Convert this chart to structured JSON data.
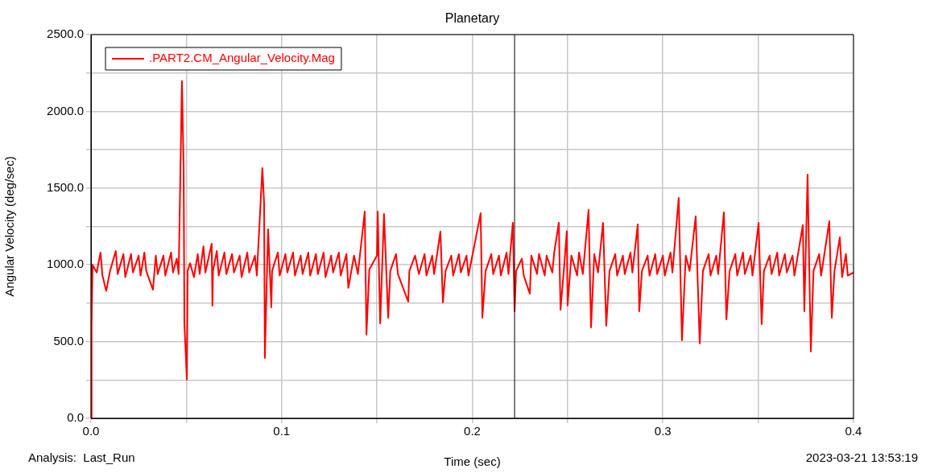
{
  "chart_data": {
    "type": "line",
    "title": "Planetary",
    "xlabel": "Time (sec)",
    "ylabel": "Angular Velocity (deg/sec)",
    "annotations": [
      "Analysis:  Last_Run",
      "2023-03-21 13:53:19"
    ],
    "xlim": [
      0,
      0.4
    ],
    "xticks": [
      {
        "value": 0,
        "label": "0.0"
      },
      {
        "value": 0.05,
        "label": null
      },
      {
        "value": 0.1,
        "label": "0.1"
      },
      {
        "value": 0.15,
        "label": null
      },
      {
        "value": 0.2,
        "label": "0.2"
      },
      {
        "value": 0.25,
        "label": null
      },
      {
        "value": 0.3,
        "label": "0.3"
      },
      {
        "value": 0.35,
        "label": null
      },
      {
        "value": 0.4,
        "label": "0.4"
      }
    ],
    "ylim": [
      0,
      2500
    ],
    "yticks": [
      {
        "value": 0,
        "label": "0.0"
      },
      {
        "value": 250,
        "label": null
      },
      {
        "value": 500,
        "label": "500.0"
      },
      {
        "value": 750,
        "label": null
      },
      {
        "value": 1000,
        "label": "1000.0"
      },
      {
        "value": 1250,
        "label": null
      },
      {
        "value": 1500,
        "label": "1500.0"
      },
      {
        "value": 1750,
        "label": null
      },
      {
        "value": 2000,
        "label": "2000.0"
      },
      {
        "value": 2250,
        "label": null
      },
      {
        "value": 2500,
        "label": "2500.0"
      }
    ],
    "grid": true,
    "legend": "top left",
    "line_style": "solid",
    "ref_lines": [
      {
        "axis": "x",
        "value": 0.2222,
        "color": "#000000"
      }
    ],
    "series": [
      {
        "name": ".PART2.CM_Angular_Velocity.Mag",
        "color": "#ff0000",
        "x": [
          0,
          0.0003,
          0.0008,
          0.003,
          0.005,
          0.006,
          0.008,
          0.01,
          0.013,
          0.014,
          0.017,
          0.018,
          0.021,
          0.022,
          0.025,
          0.026,
          0.028,
          0.029,
          0.0325,
          0.034,
          0.035,
          0.038,
          0.039,
          0.042,
          0.043,
          0.045,
          0.046,
          0.0477,
          0.0486,
          0.049,
          0.0503,
          0.0507,
          0.052,
          0.054,
          0.056,
          0.057,
          0.059,
          0.06,
          0.0633,
          0.0637,
          0.064,
          0.066,
          0.067,
          0.07,
          0.071,
          0.074,
          0.075,
          0.078,
          0.079,
          0.082,
          0.083,
          0.086,
          0.087,
          0.0899,
          0.0908,
          0.0912,
          0.0929,
          0.0946,
          0.095,
          0.098,
          0.099,
          0.102,
          0.103,
          0.106,
          0.107,
          0.11,
          0.111,
          0.114,
          0.115,
          0.118,
          0.119,
          0.122,
          0.123,
          0.126,
          0.127,
          0.13,
          0.131,
          0.134,
          0.135,
          0.138,
          0.14,
          0.1436,
          0.1445,
          0.146,
          0.15,
          0.1504,
          0.1517,
          0.1537,
          0.1559,
          0.157,
          0.16,
          0.161,
          0.1664,
          0.167,
          0.17,
          0.172,
          0.175,
          0.176,
          0.179,
          0.18,
          0.1833,
          0.1846,
          0.186,
          0.189,
          0.19,
          0.193,
          0.194,
          0.197,
          0.198,
          0.2044,
          0.2053,
          0.207,
          0.21,
          0.211,
          0.214,
          0.215,
          0.218,
          0.219,
          0.2213,
          0.2222,
          0.223,
          0.226,
          0.227,
          0.2302,
          0.231,
          0.234,
          0.235,
          0.238,
          0.239,
          0.242,
          0.243,
          0.2454,
          0.2463,
          0.248,
          0.2496,
          0.25,
          0.252,
          0.255,
          0.256,
          0.258,
          0.261,
          0.2623,
          0.264,
          0.266,
          0.2686,
          0.2703,
          0.272,
          0.275,
          0.276,
          0.279,
          0.28,
          0.283,
          0.284,
          0.2868,
          0.2876,
          0.289,
          0.292,
          0.293,
          0.296,
          0.297,
          0.3,
          0.301,
          0.304,
          0.305,
          0.3083,
          0.31,
          0.312,
          0.314,
          0.3172,
          0.3193,
          0.321,
          0.324,
          0.325,
          0.328,
          0.329,
          0.332,
          0.3333,
          0.335,
          0.338,
          0.339,
          0.342,
          0.343,
          0.346,
          0.347,
          0.3502,
          0.3518,
          0.353,
          0.356,
          0.357,
          0.36,
          0.361,
          0.364,
          0.365,
          0.368,
          0.369,
          0.3734,
          0.3742,
          0.3759,
          0.3776,
          0.379,
          0.382,
          0.383,
          0.3873,
          0.3886,
          0.39,
          0.3928,
          0.394,
          0.396,
          0.397,
          0.4
        ],
        "values": [
          0,
          600,
          1000,
          950,
          1080,
          930,
          830,
          960,
          1090,
          940,
          1070,
          920,
          1070,
          950,
          1060,
          930,
          1080,
          960,
          838,
          1060,
          940,
          1060,
          930,
          1080,
          950,
          1040,
          940,
          2196,
          1625,
          618,
          252,
          960,
          1010,
          920,
          1070,
          940,
          1120,
          950,
          1137,
          734,
          960,
          1090,
          930,
          1080,
          940,
          1070,
          950,
          1060,
          920,
          1080,
          950,
          1060,
          930,
          1630,
          1404,
          393,
          1231,
          723,
          960,
          1080,
          930,
          1070,
          950,
          1080,
          930,
          1060,
          940,
          1080,
          930,
          1070,
          940,
          1080,
          920,
          1060,
          950,
          1080,
          930,
          1070,
          850,
          1060,
          940,
          1347,
          545,
          970,
          1060,
          1347,
          618,
          1331,
          655,
          960,
          1070,
          940,
          760,
          960,
          1060,
          940,
          1070,
          930,
          1060,
          940,
          1216,
          755,
          960,
          1060,
          930,
          1070,
          950,
          1060,
          930,
          1336,
          655,
          960,
          1070,
          940,
          1060,
          930,
          1080,
          940,
          1274,
          697,
          960,
          1040,
          930,
          812,
          1060,
          940,
          1070,
          930,
          1060,
          950,
          1080,
          1274,
          707,
          960,
          1219,
          735,
          1060,
          930,
          1080,
          940,
          1357,
          592,
          1070,
          950,
          1274,
          603,
          960,
          1070,
          930,
          1060,
          940,
          1080,
          950,
          1263,
          697,
          960,
          1060,
          930,
          1070,
          940,
          1060,
          930,
          1080,
          950,
          1436,
          508,
          1060,
          960,
          1315,
          487,
          960,
          1070,
          930,
          1060,
          940,
          1342,
          645,
          960,
          1070,
          930,
          1080,
          940,
          1060,
          930,
          1274,
          613,
          960,
          1060,
          940,
          1080,
          930,
          1070,
          950,
          1060,
          930,
          1258,
          697,
          1588,
          435,
          960,
          1070,
          930,
          1284,
          655,
          960,
          1179,
          920,
          1070,
          930,
          950
        ]
      }
    ]
  }
}
